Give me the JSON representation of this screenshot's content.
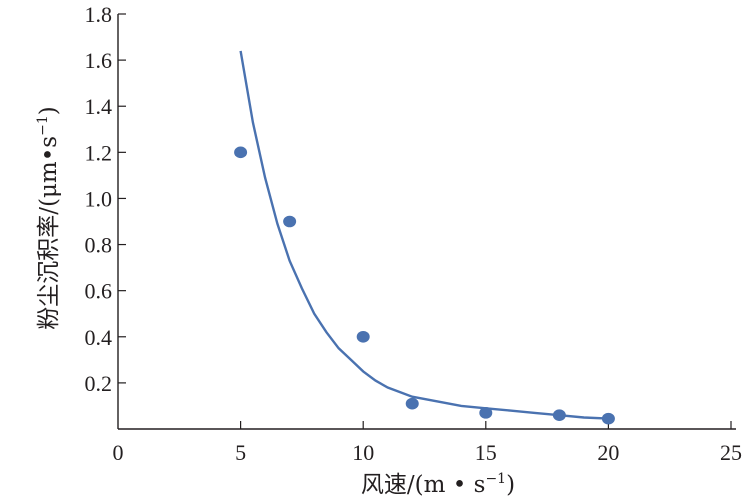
{
  "chart_data": {
    "type": "scatter",
    "xlabel": "风速/(m • s",
    "xlabel_sup": "−1",
    "xlabel_tail": ")",
    "ylabel": "粉尘沉积率/(μm•s",
    "ylabel_sup": "−1",
    "ylabel_tail": ")",
    "xlim": [
      0,
      25
    ],
    "ylim": [
      0,
      1.8
    ],
    "x_ticks": [
      0,
      5,
      10,
      15,
      20,
      25
    ],
    "x_tick_labels": [
      "0",
      "5",
      "10",
      "15",
      "20",
      "25"
    ],
    "y_ticks": [
      0.2,
      0.4,
      0.6,
      0.8,
      1.0,
      1.2,
      1.4,
      1.6,
      1.8
    ],
    "y_tick_labels": [
      "0.2",
      "0.4",
      "0.6",
      "0.8",
      "1.0",
      "1.2",
      "1.4",
      "1.6",
      "1.8"
    ],
    "grid": false,
    "series": [
      {
        "type": "scatter",
        "x": [
          5,
          7,
          10,
          12,
          15,
          18,
          20
        ],
        "y": [
          1.2,
          0.9,
          0.4,
          0.11,
          0.07,
          0.06,
          0.045
        ]
      },
      {
        "type": "line",
        "x": [
          5,
          5.5,
          6,
          6.5,
          7,
          7.5,
          8,
          8.5,
          9,
          9.5,
          10,
          10.5,
          11,
          11.5,
          12,
          13,
          14,
          15,
          16,
          17,
          18,
          19,
          20
        ],
        "y": [
          1.64,
          1.33,
          1.09,
          0.89,
          0.73,
          0.61,
          0.5,
          0.42,
          0.35,
          0.3,
          0.25,
          0.21,
          0.18,
          0.16,
          0.14,
          0.12,
          0.1,
          0.09,
          0.08,
          0.07,
          0.06,
          0.05,
          0.045
        ]
      }
    ],
    "colors": {
      "series": "#4a72b0",
      "axis": "#231f20"
    }
  }
}
